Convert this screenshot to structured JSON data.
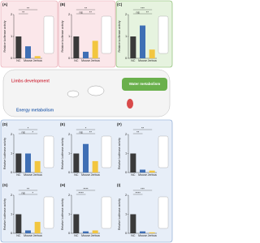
{
  "chart_data": [
    {
      "type": "bar",
      "title": "(A)",
      "y_label": "Relative luciferase activity",
      "categories": [
        "NC",
        "Mouse",
        "Jerboa"
      ],
      "series": [
        {
          "name": null,
          "colors": [
            "#3a3a3a",
            "#3f6fb5",
            "#f2c640"
          ],
          "values": [
            1.0,
            0.55,
            0.1
          ]
        }
      ],
      "ylim": [
        0,
        2
      ],
      "yticks": [
        0,
        1,
        2
      ],
      "significance": [
        "**",
        "**"
      ]
    },
    {
      "type": "bar",
      "title": "(B)",
      "y_label": "Relative luciferase activity",
      "categories": [
        "NC",
        "Mouse",
        "Jerboa"
      ],
      "series": [
        {
          "name": null,
          "colors": [
            "#3a3a3a",
            "#3f6fb5",
            "#f2c640"
          ],
          "values": [
            1.0,
            0.3,
            0.8
          ]
        }
      ],
      "ylim": [
        0,
        2
      ],
      "yticks": [
        0,
        1,
        2
      ],
      "significance": [
        "ns",
        "**",
        "**"
      ]
    },
    {
      "type": "bar",
      "title": "(C)",
      "y_label": "Relative luciferase activity",
      "categories": [
        "NC",
        "Mouse",
        "Jerboa"
      ],
      "series": [
        {
          "name": null,
          "colors": [
            "#3a3a3a",
            "#3f6fb5",
            "#f2c640"
          ],
          "values": [
            1.0,
            1.5,
            0.4
          ]
        }
      ],
      "ylim": [
        0,
        2
      ],
      "yticks": [
        0,
        1,
        2
      ],
      "significance": [
        "ns",
        "**",
        "***"
      ]
    },
    {
      "type": "bar",
      "title": "(D)",
      "y_label": "Relative luciferase activity",
      "categories": [
        "NC",
        "Mouse",
        "Jerboa"
      ],
      "series": [
        {
          "name": null,
          "colors": [
            "#3a3a3a",
            "#3f6fb5",
            "#f2c640"
          ],
          "values": [
            1.0,
            1.0,
            0.6
          ]
        }
      ],
      "ylim": [
        0,
        2
      ],
      "yticks": [
        0,
        1,
        2
      ],
      "significance": [
        "ns",
        "*",
        "*"
      ]
    },
    {
      "type": "bar",
      "title": "(E)",
      "y_label": "Relative luciferase activity",
      "categories": [
        "NC",
        "Mouse",
        "Jerboa"
      ],
      "series": [
        {
          "name": null,
          "colors": [
            "#3a3a3a",
            "#3f6fb5",
            "#f2c640"
          ],
          "values": [
            1.0,
            1.5,
            0.6
          ]
        }
      ],
      "ylim": [
        0,
        2
      ],
      "yticks": [
        0,
        1,
        2
      ],
      "significance": [
        "ns",
        "**",
        "*"
      ]
    },
    {
      "type": "bar",
      "title": "(F)",
      "y_label": "Relative luciferase activity",
      "categories": [
        "NC",
        "Mouse",
        "Jerboa"
      ],
      "series": [
        {
          "name": null,
          "colors": [
            "#3a3a3a",
            "#3f6fb5",
            "#f2c640"
          ],
          "values": [
            1.0,
            0.15,
            0.1
          ]
        }
      ],
      "ylim": [
        0,
        2
      ],
      "yticks": [
        0,
        1,
        2
      ],
      "significance": [
        "**",
        "**"
      ]
    },
    {
      "type": "bar",
      "title": "(G)",
      "y_label": "Relative luciferase activity",
      "categories": [
        "NC",
        "Mouse",
        "Jerboa"
      ],
      "series": [
        {
          "name": null,
          "colors": [
            "#3a3a3a",
            "#3f6fb5",
            "#f2c640"
          ],
          "values": [
            1.0,
            0.15,
            0.6
          ]
        }
      ],
      "ylim": [
        0,
        2
      ],
      "yticks": [
        0,
        1,
        2
      ],
      "significance": [
        "ns",
        "*",
        "**"
      ]
    },
    {
      "type": "bar",
      "title": "(H)",
      "y_label": "Relative luciferase activity",
      "categories": [
        "NC",
        "Mouse",
        "Jerboa"
      ],
      "series": [
        {
          "name": null,
          "colors": [
            "#3a3a3a",
            "#3f6fb5",
            "#f2c640"
          ],
          "values": [
            1.0,
            0.1,
            0.15
          ]
        }
      ],
      "ylim": [
        0,
        2
      ],
      "yticks": [
        0,
        1,
        2
      ],
      "significance": [
        "****",
        "****"
      ]
    },
    {
      "type": "bar",
      "title": "(I)",
      "y_label": "Relative luciferase activity",
      "categories": [
        "NC",
        "Mouse",
        "Jerboa"
      ],
      "series": [
        {
          "name": null,
          "colors": [
            "#3a3a3a",
            "#3f6fb5",
            "#f2c640"
          ],
          "values": [
            1.0,
            0.1,
            0.05
          ]
        }
      ],
      "ylim": [
        0,
        2
      ],
      "yticks": [
        0,
        1,
        2
      ],
      "significance": [
        "****",
        "***"
      ]
    }
  ],
  "diagram": {
    "labels": [
      "Limbs development",
      "Water metabolism",
      "Energy metabolism"
    ]
  }
}
